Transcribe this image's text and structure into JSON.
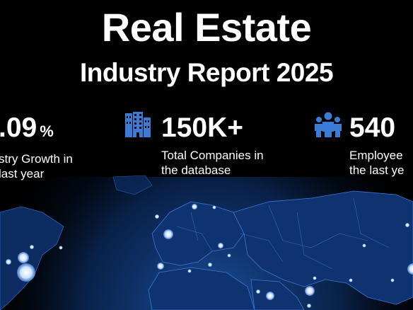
{
  "header": {
    "title_line1": "Real Estate",
    "title_line2": "Industry Report 2025"
  },
  "stats": [
    {
      "value": ".09",
      "unit": "%",
      "desc_line1": "stry Growth in",
      "desc_line2": "last year",
      "icon": ""
    },
    {
      "value": "150K+",
      "unit": "",
      "desc_line1": "Total Companies in",
      "desc_line2": "the database",
      "icon": "building-icon"
    },
    {
      "value": "540",
      "unit": "",
      "desc_line1": "Employee",
      "desc_line2": "the last ye",
      "icon": "people-icon"
    }
  ],
  "colors": {
    "background": "#000000",
    "map_glow": "#1f5fbf",
    "land": "#0d2c62",
    "icon_blue": "#3a7bd5",
    "dot": "#cfe3ff"
  }
}
